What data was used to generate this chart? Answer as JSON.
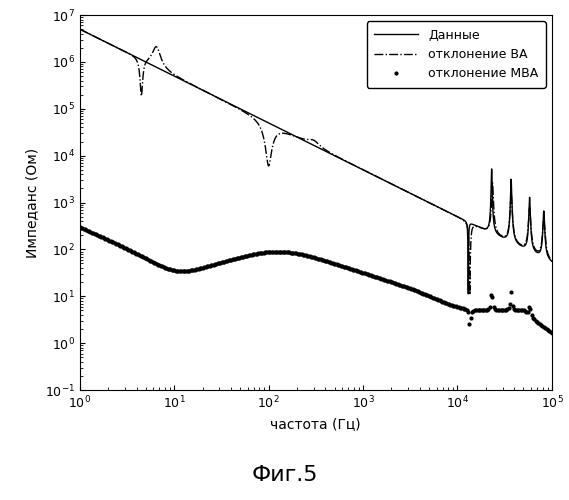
{
  "title": "Фиг.5",
  "xlabel": "частота (Гц)",
  "ylabel": "Импеданс (Ом)",
  "xlim": [
    1,
    100000
  ],
  "ylim": [
    0.1,
    10000000.0
  ],
  "legend_labels": [
    "Данные",
    "отклонение ВА",
    "отклонение МВА"
  ],
  "background_color": "#ffffff",
  "line_color": "#000000"
}
